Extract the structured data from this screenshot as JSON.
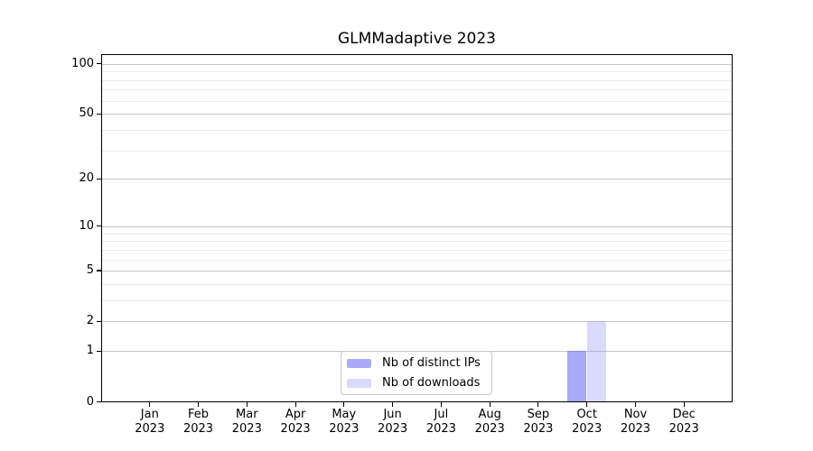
{
  "title": "GLMMadaptive 2023",
  "chart_data": {
    "type": "bar",
    "title": "GLMMadaptive 2023",
    "x": {
      "months": [
        "Jan",
        "Feb",
        "Mar",
        "Apr",
        "May",
        "Jun",
        "Jul",
        "Aug",
        "Sep",
        "Oct",
        "Nov",
        "Dec"
      ],
      "year": "2023"
    },
    "series": [
      {
        "name": "Nb of distinct IPs",
        "color": "rgba(100,100,240,0.55)",
        "values": [
          0,
          0,
          0,
          0,
          0,
          0,
          0,
          0,
          0,
          1,
          0,
          0
        ]
      },
      {
        "name": "Nb of downloads",
        "color": "rgba(150,150,240,0.35)",
        "values": [
          0,
          0,
          0,
          0,
          0,
          0,
          0,
          0,
          0,
          2,
          0,
          0
        ]
      }
    ],
    "y_axis": {
      "scale": "log1p",
      "ticks": [
        0,
        1,
        2,
        5,
        10,
        20,
        50,
        100
      ],
      "minor_gridlines": [
        3,
        4,
        6,
        7,
        8,
        9,
        30,
        40,
        60,
        70,
        80,
        90
      ],
      "ylim": [
        0,
        114
      ]
    },
    "grid": true,
    "legend_position": "lower center"
  },
  "colors": {
    "major_grid": "#c6c6c6",
    "minor_grid": "#eaeaea",
    "spine": "#000000",
    "legend_border": "#c9c9c9",
    "background": "#ffffff"
  }
}
